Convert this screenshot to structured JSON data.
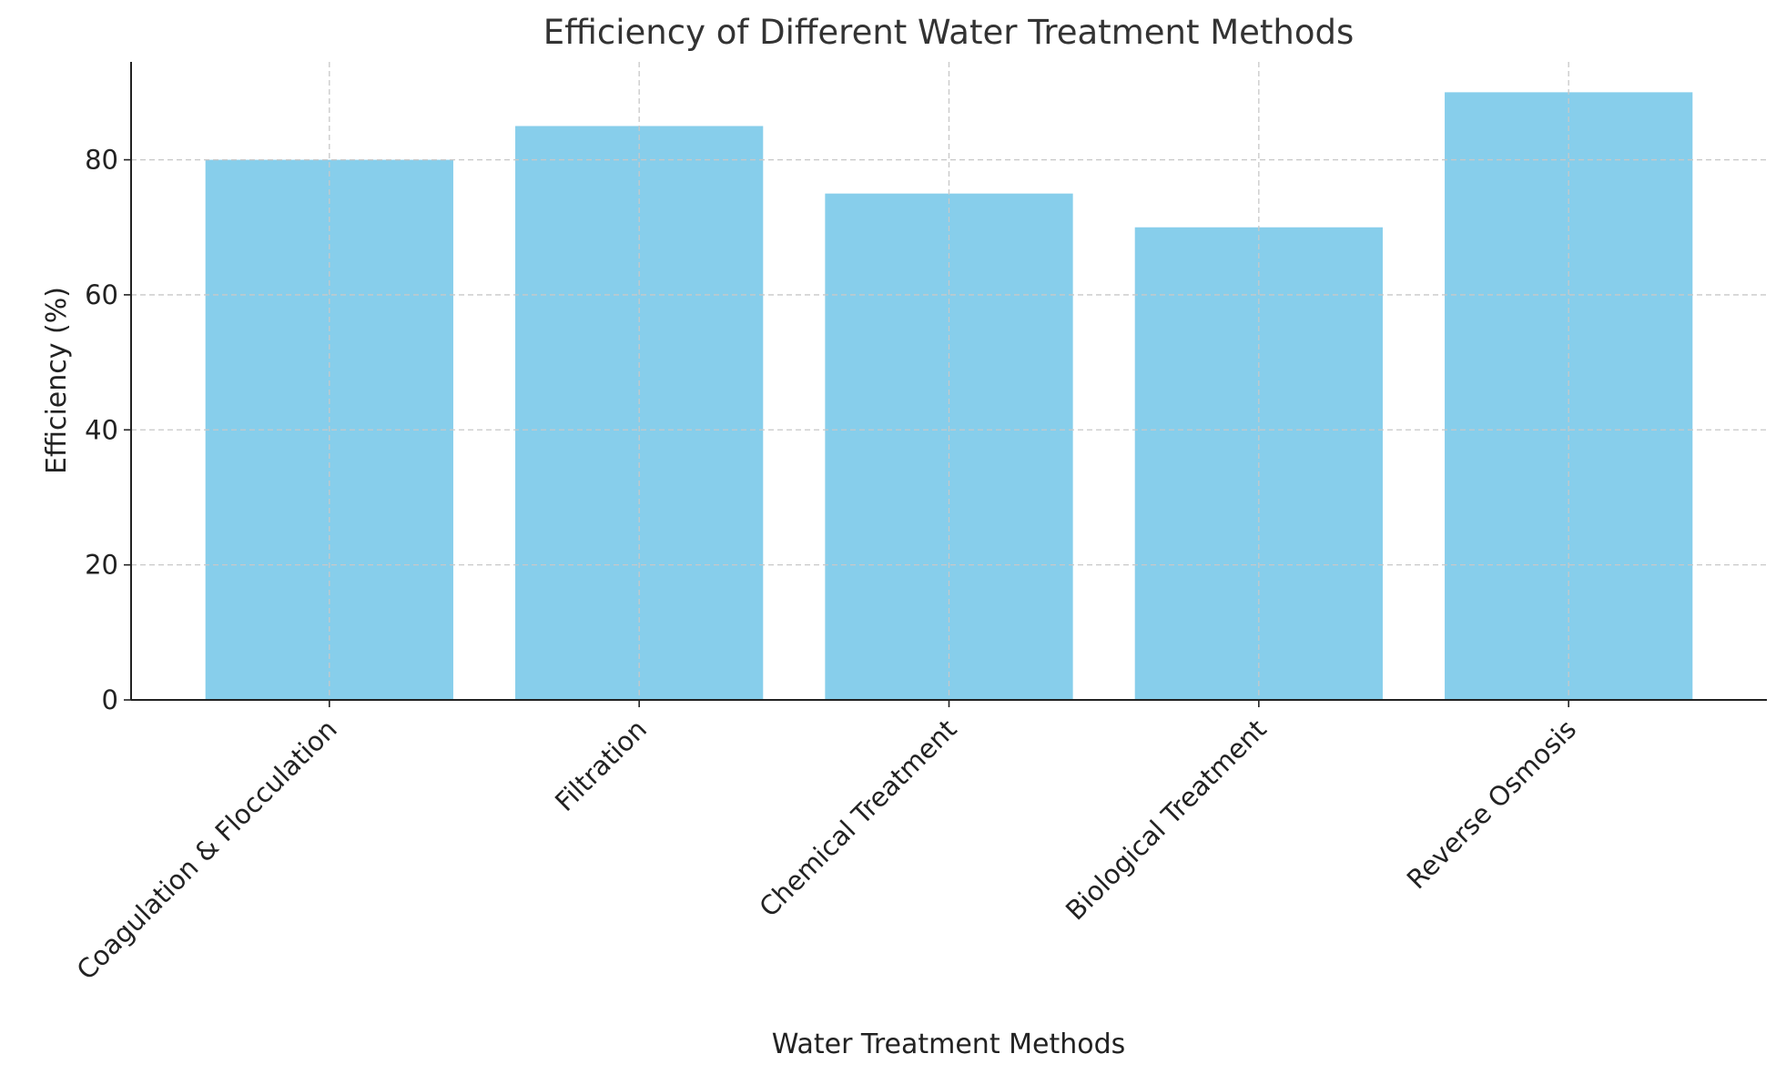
{
  "chart_data": {
    "type": "bar",
    "title": "Efficiency of Different Water Treatment Methods",
    "xlabel": "Water Treatment Methods",
    "ylabel": "Efficiency (%)",
    "categories": [
      "Coagulation & Flocculation",
      "Filtration",
      "Chemical Treatment",
      "Biological Treatment",
      "Reverse Osmosis"
    ],
    "values": [
      80,
      85,
      75,
      70,
      90
    ],
    "ylim": [
      0,
      94.5
    ],
    "yticks": [
      0,
      20,
      40,
      60,
      80
    ],
    "grid": true,
    "bar_color": "#87CEEB",
    "xtick_rotation": 45
  }
}
